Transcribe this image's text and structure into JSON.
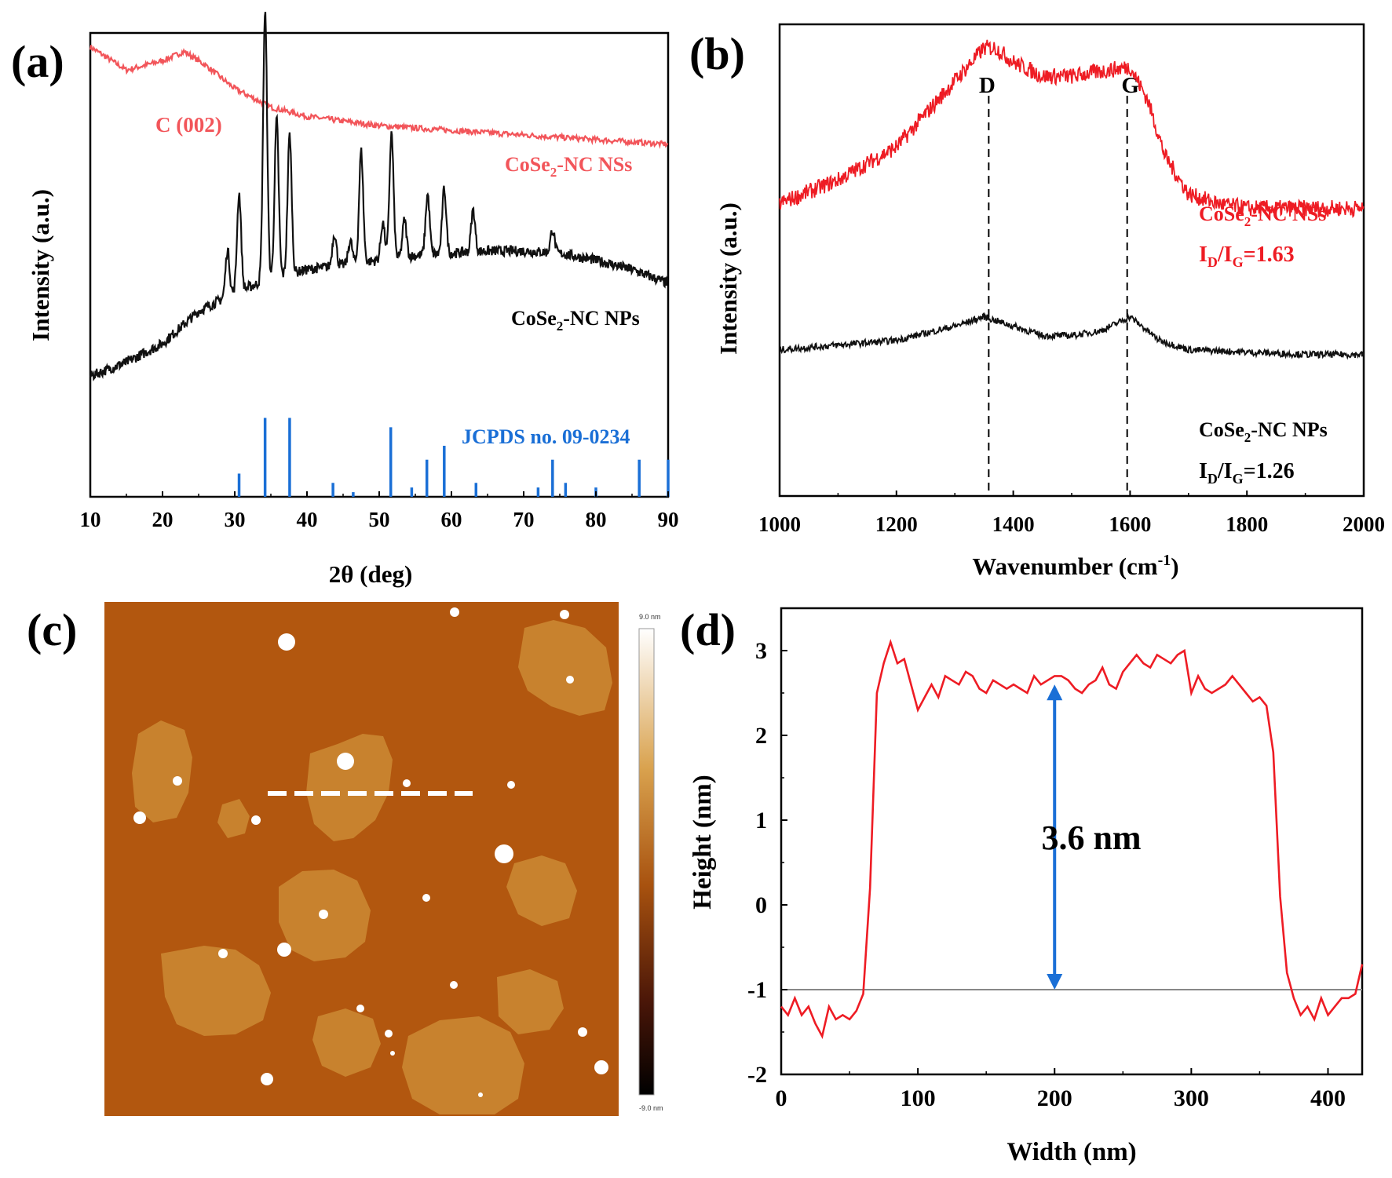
{
  "colors": {
    "red": "#ee1c24",
    "salmon": "#f2555a",
    "black": "#111111",
    "blue": "#1a6fd6",
    "afm_bg": "#b2570f",
    "afm_flake": "#c8822e"
  },
  "chart_data": [
    {
      "panel": "(a)",
      "type": "line",
      "xlabel": "2θ (deg)",
      "ylabel": "Intensity (a.u.)",
      "xlim": [
        10,
        90
      ],
      "x_ticks": [
        "10",
        "20",
        "30",
        "40",
        "50",
        "60",
        "70",
        "80",
        "90"
      ],
      "annotation": "C (002)",
      "series": [
        {
          "name": "CoSe₂-NC NSs",
          "name_main": "CoSe",
          "name_sub": "2",
          "name_tail": "-NC NSs",
          "color": "salmon",
          "x": [
            10,
            15,
            20,
            23,
            26,
            30,
            35,
            40,
            45,
            50,
            60,
            70,
            80,
            90
          ],
          "y": [
            0.97,
            0.92,
            0.94,
            0.96,
            0.93,
            0.88,
            0.84,
            0.82,
            0.81,
            0.8,
            0.79,
            0.78,
            0.77,
            0.76
          ]
        },
        {
          "name": "CoSe₂-NC NPs",
          "name_main": "CoSe",
          "name_sub": "2",
          "name_tail": "-NC NPs",
          "color": "black",
          "x": [
            10,
            15,
            20,
            25,
            30,
            35,
            40,
            45,
            50,
            55,
            60,
            65,
            70,
            75,
            80,
            85,
            90
          ],
          "y": [
            0.26,
            0.29,
            0.33,
            0.4,
            0.44,
            0.47,
            0.49,
            0.5,
            0.51,
            0.52,
            0.525,
            0.53,
            0.53,
            0.525,
            0.51,
            0.49,
            0.46
          ],
          "peaks": [
            [
              29.0,
              0.1
            ],
            [
              30.6,
              0.21
            ],
            [
              34.2,
              0.58
            ],
            [
              35.8,
              0.34
            ],
            [
              37.6,
              0.3
            ],
            [
              43.8,
              0.07
            ],
            [
              46.0,
              0.05
            ],
            [
              47.5,
              0.24
            ],
            [
              50.5,
              0.08
            ],
            [
              51.7,
              0.27
            ],
            [
              53.5,
              0.08
            ],
            [
              56.7,
              0.13
            ],
            [
              59.0,
              0.14
            ],
            [
              63.0,
              0.09
            ],
            [
              74.0,
              0.05
            ]
          ]
        },
        {
          "name": "JCPDS no. 09-0234",
          "type": "stick",
          "color": "blue",
          "x": [
            30.6,
            34.2,
            37.6,
            43.6,
            46.4,
            51.6,
            54.5,
            56.6,
            59.0,
            63.4,
            72.0,
            74.0,
            75.8,
            80.0,
            86.0,
            90.0
          ],
          "y": [
            0.05,
            0.17,
            0.17,
            0.03,
            0.01,
            0.15,
            0.02,
            0.08,
            0.11,
            0.03,
            0.02,
            0.08,
            0.03,
            0.02,
            0.08,
            0.08
          ]
        }
      ]
    },
    {
      "panel": "(b)",
      "type": "line",
      "xlabel_main": "Wavenumber (cm",
      "xlabel_sup": "-1",
      "xlabel_tail": ")",
      "ylabel": "Intensity (a.u.)",
      "xlim": [
        1000,
        2000
      ],
      "x_ticks": [
        "1000",
        "1200",
        "1400",
        "1600",
        "1800",
        "2000"
      ],
      "markers": [
        {
          "label": "D",
          "x": 1358
        },
        {
          "label": "G",
          "x": 1595
        }
      ],
      "series": [
        {
          "name": "CoSe₂-NC NSs",
          "name_main": "CoSe",
          "name_sub": "2",
          "name_tail": "-NC NSs",
          "color": "red",
          "ratio_text": "I_D/I_G=1.63",
          "ratio_value": "1.63",
          "x": [
            1000,
            1100,
            1200,
            1300,
            1350,
            1370,
            1400,
            1450,
            1500,
            1550,
            1600,
            1630,
            1660,
            1700,
            1750,
            1800,
            1900,
            2000
          ],
          "y": [
            0.62,
            0.67,
            0.74,
            0.88,
            0.95,
            0.95,
            0.92,
            0.89,
            0.89,
            0.9,
            0.91,
            0.84,
            0.72,
            0.64,
            0.62,
            0.61,
            0.61,
            0.61
          ]
        },
        {
          "name": "CoSe₂-NC NPs",
          "name_main": "CoSe",
          "name_sub": "2",
          "name_tail": "-NC NPs",
          "color": "black",
          "ratio_text": "I_D/I_G=1.26",
          "ratio_value": "1.26",
          "x": [
            1000,
            1100,
            1200,
            1300,
            1350,
            1400,
            1450,
            1500,
            1550,
            1600,
            1650,
            1700,
            1800,
            1900,
            2000
          ],
          "y": [
            0.31,
            0.32,
            0.33,
            0.36,
            0.38,
            0.36,
            0.34,
            0.34,
            0.35,
            0.38,
            0.33,
            0.31,
            0.305,
            0.3,
            0.3
          ]
        }
      ]
    },
    {
      "panel": "(c)",
      "type": "heatmap",
      "colorbar_max": "9.0 nm",
      "colorbar_min": "-9.0 nm"
    },
    {
      "panel": "(d)",
      "type": "line",
      "xlabel": "Width (nm)",
      "ylabel": "Height (nm)",
      "xlim": [
        0,
        425
      ],
      "ylim": [
        -2,
        3.5
      ],
      "x_ticks": [
        "0",
        "100",
        "200",
        "300",
        "400"
      ],
      "y_ticks": [
        "3",
        "2",
        "1",
        "0",
        "-1",
        "-2"
      ],
      "annotation": "3.6 nm",
      "baseline": -1,
      "arrow_x": 200,
      "arrow_y": [
        -1,
        2.6
      ],
      "series": [
        {
          "color": "red",
          "x": [
            0,
            5,
            10,
            15,
            20,
            25,
            30,
            35,
            40,
            45,
            50,
            55,
            60,
            65,
            70,
            75,
            80,
            85,
            90,
            95,
            100,
            105,
            110,
            115,
            120,
            125,
            130,
            135,
            140,
            145,
            150,
            155,
            160,
            165,
            170,
            175,
            180,
            185,
            190,
            195,
            200,
            205,
            210,
            215,
            220,
            225,
            230,
            235,
            240,
            245,
            250,
            255,
            260,
            265,
            270,
            275,
            280,
            285,
            290,
            295,
            300,
            305,
            310,
            315,
            320,
            325,
            330,
            335,
            340,
            345,
            350,
            355,
            360,
            365,
            370,
            375,
            380,
            385,
            390,
            395,
            400,
            405,
            410,
            415,
            420,
            425
          ],
          "y": [
            -1.2,
            -1.3,
            -1.1,
            -1.3,
            -1.2,
            -1.4,
            -1.55,
            -1.2,
            -1.35,
            -1.3,
            -1.35,
            -1.25,
            -1.05,
            0.2,
            2.5,
            2.85,
            3.1,
            2.85,
            2.9,
            2.6,
            2.3,
            2.45,
            2.6,
            2.45,
            2.7,
            2.65,
            2.6,
            2.75,
            2.7,
            2.55,
            2.5,
            2.65,
            2.6,
            2.55,
            2.6,
            2.55,
            2.5,
            2.7,
            2.6,
            2.65,
            2.7,
            2.7,
            2.65,
            2.55,
            2.5,
            2.6,
            2.65,
            2.8,
            2.6,
            2.55,
            2.75,
            2.85,
            2.95,
            2.85,
            2.8,
            2.95,
            2.9,
            2.85,
            2.95,
            3.0,
            2.5,
            2.7,
            2.55,
            2.5,
            2.55,
            2.6,
            2.7,
            2.6,
            2.5,
            2.4,
            2.45,
            2.35,
            1.8,
            0.1,
            -0.8,
            -1.1,
            -1.3,
            -1.2,
            -1.35,
            -1.1,
            -1.3,
            -1.2,
            -1.1,
            -1.1,
            -1.05,
            -0.7
          ]
        }
      ]
    }
  ]
}
